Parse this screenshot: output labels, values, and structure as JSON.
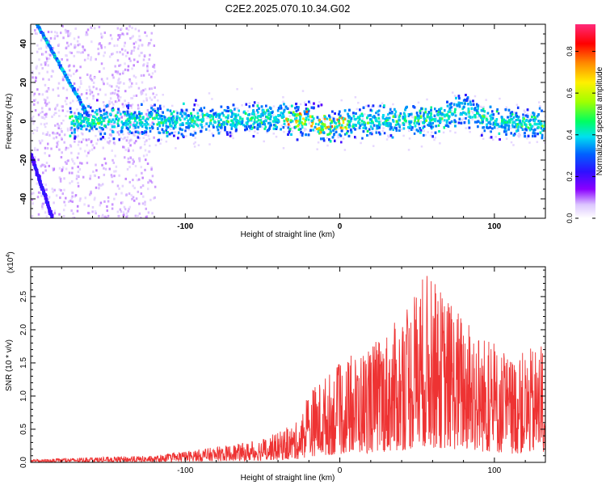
{
  "title": "C2E2.2025.070.10.34.G02",
  "chart_data": [
    {
      "type": "heatmap",
      "xlabel": "Height of straight line (km)",
      "ylabel": "Frequency (Hz)",
      "xlim": [
        -200,
        133
      ],
      "ylim": [
        -50,
        50
      ],
      "x_ticks": [
        "-100",
        "0",
        "100"
      ],
      "y_ticks": [
        "-40",
        "-20",
        "0",
        "20",
        "40"
      ],
      "colorbar": {
        "label": "Normalized spectral amplitude",
        "range": [
          0,
          0.93
        ],
        "ticks": [
          "0.0",
          "0.2",
          "0.4",
          "0.6",
          "0.8"
        ]
      },
      "band": {
        "center_freq_hz": [
          {
            "x": -170,
            "y": 0
          },
          {
            "x": -100,
            "y": 0
          },
          {
            "x": -40,
            "y": 2
          },
          {
            "x": -20,
            "y": 0
          },
          {
            "x": -5,
            "y": -3
          },
          {
            "x": 10,
            "y": 0
          },
          {
            "x": 60,
            "y": 1
          },
          {
            "x": 80,
            "y": 6
          },
          {
            "x": 100,
            "y": 0
          },
          {
            "x": 133,
            "y": -2
          }
        ],
        "halfwidth_hz": 8
      },
      "tracks": [
        {
          "x": [
            -196,
            -163
          ],
          "y": [
            50,
            3
          ]
        },
        {
          "x": [
            -200,
            -186
          ],
          "y": [
            -17,
            -50
          ]
        }
      ]
    },
    {
      "type": "line",
      "xlabel": "Height of straight line (km)",
      "ylabel": "SNR (10 * v/v)",
      "y_multiplier": "(x10",
      "y_exponent": "4",
      "xlim": [
        -200,
        133
      ],
      "ylim": [
        0,
        2.95
      ],
      "x_ticks": [
        "-100",
        "0",
        "100"
      ],
      "y_ticks": [
        "0.0",
        "0.5",
        "1.0",
        "1.5",
        "2.0",
        "2.5"
      ],
      "color": "#ee3333",
      "envelope": [
        {
          "x": -200,
          "y": 0.04
        },
        {
          "x": -160,
          "y": 0.08
        },
        {
          "x": -120,
          "y": 0.1
        },
        {
          "x": -90,
          "y": 0.2
        },
        {
          "x": -60,
          "y": 0.3
        },
        {
          "x": -40,
          "y": 0.45
        },
        {
          "x": -25,
          "y": 0.65
        },
        {
          "x": -20,
          "y": 1.1
        },
        {
          "x": 0,
          "y": 1.5
        },
        {
          "x": 20,
          "y": 1.8
        },
        {
          "x": 40,
          "y": 2.2
        },
        {
          "x": 55,
          "y": 2.9
        },
        {
          "x": 70,
          "y": 2.5
        },
        {
          "x": 90,
          "y": 2.0
        },
        {
          "x": 110,
          "y": 1.6
        },
        {
          "x": 133,
          "y": 1.8
        }
      ]
    }
  ]
}
